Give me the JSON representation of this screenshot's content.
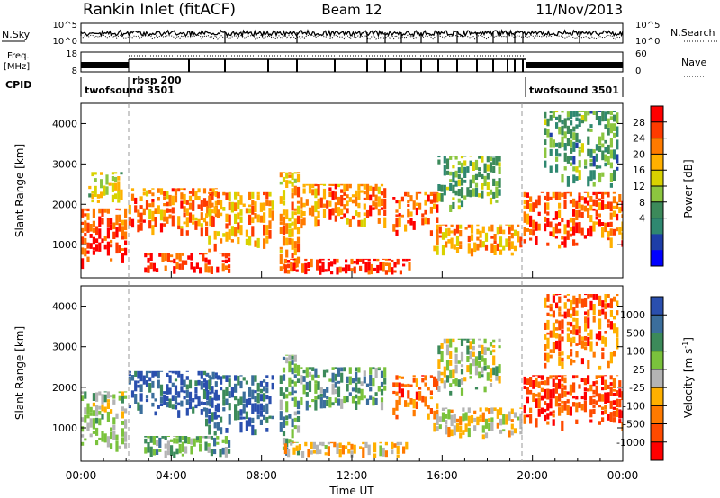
{
  "header": {
    "station": "Rankin Inlet (fitACF)",
    "beam": "Beam 12",
    "date": "11/Nov/2013"
  },
  "top_panels": {
    "nsky_label": "N.Sky",
    "nsky_ticks": [
      "10^5",
      "10^0"
    ],
    "nsky_right_ticks": [
      "10^5",
      "10^0"
    ],
    "nsearch_label": "N.Search",
    "freq_label_1": "Freq.",
    "freq_label_2": "[MHz]",
    "freq_ticks": [
      "18",
      "8"
    ],
    "nave_ticks": [
      "60",
      "0"
    ],
    "nave_label": "Nave",
    "cpid_label": "CPID",
    "cpid_segments": [
      {
        "name": "twofsound 3501",
        "start_hour": 0,
        "end_hour": 2.1
      },
      {
        "name": "rbsp 200",
        "start_hour": 2.1,
        "end_hour": 19.6
      },
      {
        "name": "twofsound 3501",
        "start_hour": 19.6,
        "end_hour": 24
      }
    ]
  },
  "chart_data": [
    {
      "type": "heatmap",
      "name": "Power panel",
      "ylabel": "Slant Range [km]",
      "xlabel": "",
      "xlim": [
        0,
        24
      ],
      "ylim": [
        180,
        4500
      ],
      "yticks": [
        "1000",
        "2000",
        "3000",
        "4000"
      ],
      "colorbar": {
        "label": "Power [dB]",
        "tick_labels": [
          "28",
          "24",
          "20",
          "16",
          "12",
          "8",
          "4"
        ],
        "colors": [
          "#ff0000",
          "#ff3a00",
          "#ff7a00",
          "#ffb000",
          "#d9d200",
          "#8cc63f",
          "#3c8a5a",
          "#2f8870",
          "#1e3ea8",
          "#0000ff"
        ]
      },
      "echo_regions": [
        {
          "x": [
            0,
            2.0
          ],
          "y": [
            400,
            1900
          ],
          "level": 0.15
        },
        {
          "x": [
            0.2,
            1.8
          ],
          "y": [
            2000,
            2800
          ],
          "level": 0.45
        },
        {
          "x": [
            2.1,
            6.0
          ],
          "y": [
            1200,
            2400
          ],
          "level": 0.25
        },
        {
          "x": [
            2.8,
            6.5
          ],
          "y": [
            250,
            800
          ],
          "level": 0.1
        },
        {
          "x": [
            5.5,
            8.5
          ],
          "y": [
            800,
            2300
          ],
          "level": 0.3
        },
        {
          "x": [
            8.8,
            9.6
          ],
          "y": [
            300,
            2800
          ],
          "level": 0.35
        },
        {
          "x": [
            9.7,
            13.5
          ],
          "y": [
            1400,
            2500
          ],
          "level": 0.25
        },
        {
          "x": [
            9.0,
            14.5
          ],
          "y": [
            250,
            650
          ],
          "level": 0.1
        },
        {
          "x": [
            13.8,
            15.8
          ],
          "y": [
            1200,
            2300
          ],
          "level": 0.2
        },
        {
          "x": [
            15.6,
            19.5
          ],
          "y": [
            700,
            1500
          ],
          "level": 0.3
        },
        {
          "x": [
            15.8,
            18.5
          ],
          "y": [
            1800,
            3200
          ],
          "level": 0.6
        },
        {
          "x": [
            19.6,
            24.0
          ],
          "y": [
            900,
            2300
          ],
          "level": 0.2
        },
        {
          "x": [
            20.5,
            23.8
          ],
          "y": [
            2400,
            4300
          ],
          "level": 0.65
        }
      ]
    },
    {
      "type": "heatmap",
      "name": "Velocity panel",
      "ylabel": "Slant Range [km]",
      "xlabel": "Time UT",
      "xlim": [
        0,
        24
      ],
      "ylim": [
        180,
        4500
      ],
      "xtick_labels": [
        "00:00",
        "04:00",
        "08:00",
        "12:00",
        "16:00",
        "20:00",
        "00:00"
      ],
      "yticks": [
        "1000",
        "2000",
        "3000",
        "4000"
      ],
      "colorbar": {
        "label": "Velocity [m s^-1]",
        "label_main": "Velocity",
        "label_units": "[m s",
        "label_exp": "-1",
        "label_close": "]",
        "tick_labels": [
          "1000",
          "500",
          "100",
          "25",
          "-25",
          "-100",
          "-500",
          "-1000"
        ],
        "colors": [
          "#2a4fae",
          "#3b6e9c",
          "#3c8a5a",
          "#7ac23c",
          "#b4b4b4",
          "#ffb000",
          "#ff7a00",
          "#ff4a00",
          "#ff0000"
        ]
      },
      "echo_regions": [
        {
          "x": [
            0,
            2.0
          ],
          "y": [
            400,
            1900
          ],
          "level": 0.45
        },
        {
          "x": [
            2.1,
            6.0
          ],
          "y": [
            1200,
            2400
          ],
          "level": 0.1
        },
        {
          "x": [
            2.8,
            6.5
          ],
          "y": [
            250,
            800
          ],
          "level": 0.35
        },
        {
          "x": [
            5.5,
            8.5
          ],
          "y": [
            800,
            2300
          ],
          "level": 0.15
        },
        {
          "x": [
            8.8,
            9.6
          ],
          "y": [
            300,
            2800
          ],
          "level": 0.3
        },
        {
          "x": [
            9.7,
            13.5
          ],
          "y": [
            1400,
            2500
          ],
          "level": 0.3
        },
        {
          "x": [
            9.0,
            14.5
          ],
          "y": [
            250,
            650
          ],
          "level": 0.6
        },
        {
          "x": [
            13.8,
            15.8
          ],
          "y": [
            1200,
            2300
          ],
          "level": 0.8
        },
        {
          "x": [
            15.6,
            19.5
          ],
          "y": [
            700,
            1500
          ],
          "level": 0.55
        },
        {
          "x": [
            15.8,
            18.5
          ],
          "y": [
            1800,
            3200
          ],
          "level": 0.45
        },
        {
          "x": [
            19.6,
            24.0
          ],
          "y": [
            900,
            2300
          ],
          "level": 0.85
        },
        {
          "x": [
            20.5,
            23.8
          ],
          "y": [
            2400,
            4300
          ],
          "level": 0.75
        }
      ]
    }
  ]
}
